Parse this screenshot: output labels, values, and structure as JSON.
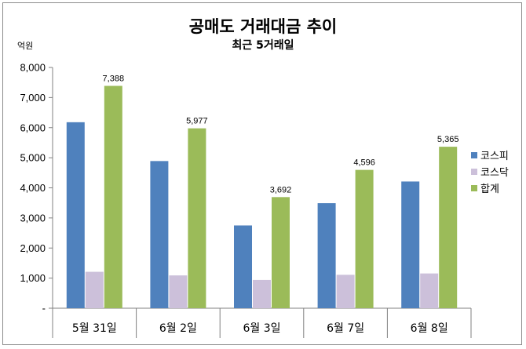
{
  "chart_data": {
    "type": "bar",
    "title": "공매도 거래대금 추이",
    "subtitle": "최근 5거래일",
    "ylabel": "억원",
    "categories": [
      "5월 31일",
      "6월 2일",
      "6월 3일",
      "6월 7일",
      "6월 8일"
    ],
    "yticks": [
      "-",
      "1,000",
      "2,000",
      "3,000",
      "4,000",
      "5,000",
      "6,000",
      "7,000",
      "8,000"
    ],
    "ylim": [
      0,
      8000
    ],
    "grid": false,
    "legend_position": "right",
    "series": [
      {
        "name": "코스피",
        "color": "#4f81bd",
        "values": [
          6180,
          4890,
          2750,
          3490,
          4210
        ],
        "labels": []
      },
      {
        "name": "코스닥",
        "color": "#ccc0da",
        "values": [
          1210,
          1090,
          940,
          1110,
          1155
        ],
        "labels": []
      },
      {
        "name": "합계",
        "color": "#9bbb59",
        "values": [
          7388,
          5977,
          3692,
          4596,
          5365
        ],
        "labels": [
          "7,388",
          "5,977",
          "3,692",
          "4,596",
          "5,365"
        ]
      }
    ]
  }
}
